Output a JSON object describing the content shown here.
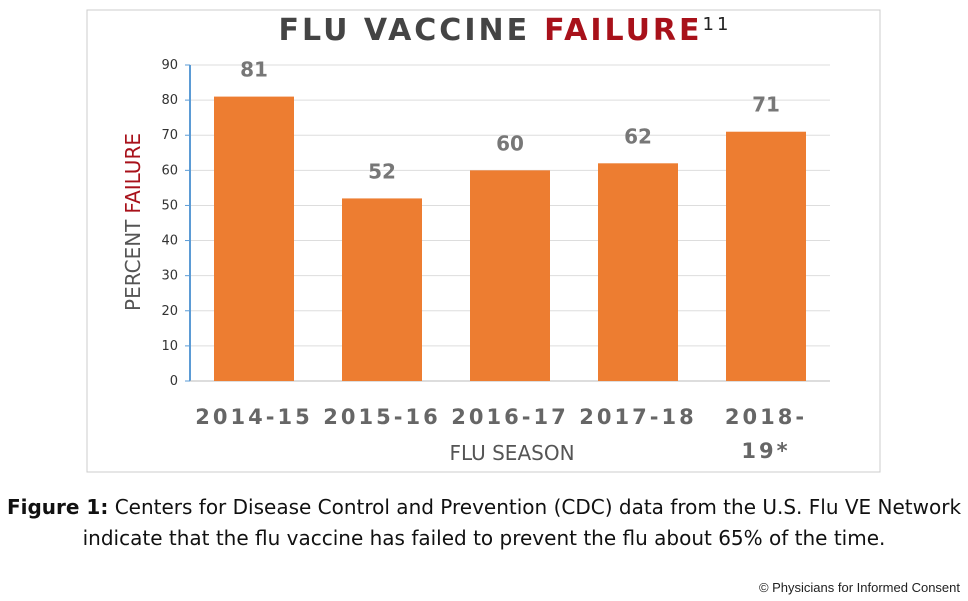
{
  "chart_data": {
    "type": "bar",
    "title": "FLU VACCINE",
    "title_highlight": "FAILURE",
    "title_note": "11",
    "ylabel": "PERCENT",
    "ylabel_highlight": "FAILURE",
    "xlabel": "FLU SEASON",
    "categories": [
      "2014-15",
      "2015-16",
      "2016-17",
      "2017-18",
      "2018-19*"
    ],
    "values": [
      81,
      52,
      60,
      62,
      71
    ],
    "color": "#ed7d31",
    "highlight_color": "#a8111a",
    "ylim": [
      0,
      90
    ],
    "yticks": [
      0,
      10,
      20,
      30,
      40,
      50,
      60,
      70,
      80,
      90
    ],
    "grid": true
  },
  "caption": {
    "label": "Figure 1:",
    "text": "Centers for Disease Control and Prevention (CDC) data from the U.S. Flu VE Network indicate that the flu vaccine has failed to prevent the flu about 65% of the time."
  },
  "credit": "© Physicians for Informed Consent"
}
